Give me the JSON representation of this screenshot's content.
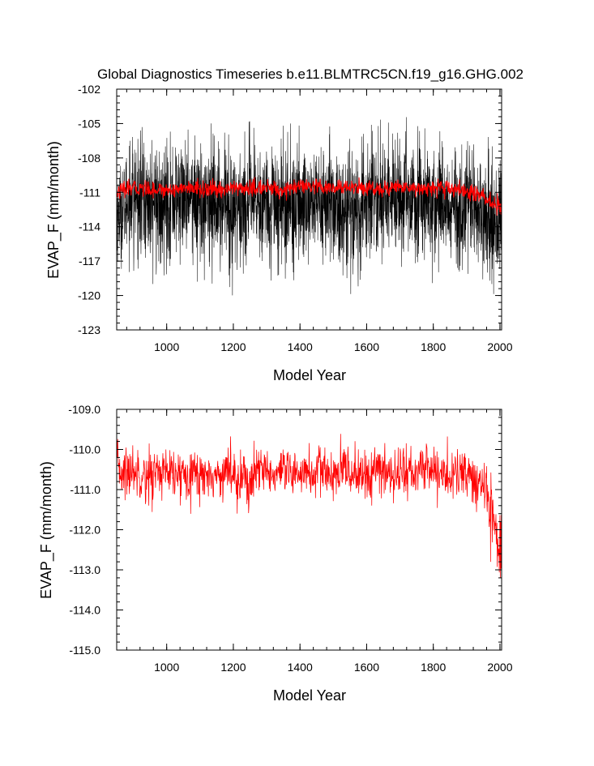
{
  "colors": {
    "background": "#ffffff",
    "axis": "#000000",
    "annual_series": "#000000",
    "smoothed_series": "#ff0000"
  },
  "chart_data": [
    {
      "type": "line",
      "title": "Global Diagnostics Timeseries b.e11.BLMTRC5CN.f19_g16.GHG.002",
      "xlabel": "Model Year",
      "ylabel": "EVAP_F (mm/month)",
      "xlim": [
        850,
        2005
      ],
      "ylim": [
        -123,
        -102
      ],
      "xticks": [
        1000,
        1200,
        1400,
        1600,
        1800,
        2000
      ],
      "xtick_labels": [
        "1000",
        "1200",
        "1400",
        "1600",
        "1800",
        "2000"
      ],
      "yticks": [
        -102,
        -105,
        -108,
        -111,
        -114,
        -117,
        -120,
        -123
      ],
      "ytick_labels": [
        "-102",
        "-105",
        "-108",
        "-111",
        "-114",
        "-117",
        "-120",
        "-123"
      ],
      "grid": false,
      "series": [
        {
          "color": "#000000",
          "style": "dense monthly noise",
          "x": [
            850,
            900,
            950,
            1000,
            1050,
            1100,
            1150,
            1200,
            1250,
            1300,
            1350,
            1400,
            1450,
            1500,
            1550,
            1600,
            1650,
            1700,
            1750,
            1800,
            1850,
            1900,
            1950,
            2000
          ],
          "y_max": [
            -107.8,
            -104.6,
            -104.9,
            -104.5,
            -104.7,
            -105.2,
            -104.8,
            -105.0,
            -104.6,
            -104.9,
            -105.1,
            -104.8,
            -104.7,
            -104.9,
            -105.0,
            -104.8,
            -104.6,
            -103.8,
            -104.9,
            -104.7,
            -105.0,
            -105.2,
            -105.6,
            -106.5
          ],
          "y_min": [
            -118.3,
            -118.0,
            -119.4,
            -118.7,
            -118.5,
            -118.9,
            -119.0,
            -120.4,
            -118.9,
            -118.6,
            -119.1,
            -119.4,
            -118.8,
            -119.2,
            -120.3,
            -118.9,
            -118.8,
            -118.7,
            -119.0,
            -119.0,
            -118.9,
            -119.4,
            -119.5,
            -122.5
          ]
        },
        {
          "color": "#ff0000",
          "x": [
            850,
            900,
            950,
            1000,
            1050,
            1100,
            1150,
            1200,
            1250,
            1300,
            1350,
            1400,
            1450,
            1500,
            1550,
            1600,
            1650,
            1700,
            1750,
            1800,
            1850,
            1900,
            1950,
            2000
          ],
          "y": [
            -111.0,
            -110.6,
            -110.7,
            -110.8,
            -110.6,
            -110.7,
            -110.8,
            -110.6,
            -110.7,
            -110.6,
            -110.8,
            -110.5,
            -110.6,
            -110.7,
            -110.5,
            -110.6,
            -110.7,
            -110.5,
            -110.6,
            -110.6,
            -110.7,
            -110.9,
            -111.3,
            -112.5
          ]
        }
      ]
    },
    {
      "type": "line",
      "xlabel": "Model Year",
      "ylabel": "EVAP_F (mm/month)",
      "xlim": [
        850,
        2005
      ],
      "ylim": [
        -115.0,
        -109.0
      ],
      "xticks": [
        1000,
        1200,
        1400,
        1600,
        1800,
        2000
      ],
      "xtick_labels": [
        "1000",
        "1200",
        "1400",
        "1600",
        "1800",
        "2000"
      ],
      "yticks": [
        -109.0,
        -110.0,
        -111.0,
        -112.0,
        -113.0,
        -114.0,
        -115.0
      ],
      "ytick_labels": [
        "-109.0",
        "-110.0",
        "-111.0",
        "-112.0",
        "-113.0",
        "-114.0",
        "-115.0"
      ],
      "grid": false,
      "series": [
        {
          "color": "#ff0000",
          "x": [
            850,
            875,
            900,
            925,
            950,
            975,
            1000,
            1025,
            1050,
            1075,
            1100,
            1125,
            1150,
            1175,
            1200,
            1225,
            1250,
            1275,
            1300,
            1325,
            1350,
            1375,
            1400,
            1425,
            1450,
            1475,
            1500,
            1525,
            1550,
            1575,
            1600,
            1625,
            1650,
            1675,
            1700,
            1725,
            1750,
            1775,
            1800,
            1825,
            1850,
            1875,
            1900,
            1925,
            1950,
            1975,
            2000
          ],
          "y": [
            -110.4,
            -110.6,
            -110.5,
            -110.6,
            -110.7,
            -110.5,
            -110.6,
            -110.7,
            -110.6,
            -110.5,
            -110.7,
            -110.6,
            -110.7,
            -110.5,
            -110.6,
            -110.7,
            -110.8,
            -110.6,
            -110.5,
            -110.7,
            -110.6,
            -110.7,
            -110.5,
            -110.6,
            -110.6,
            -110.5,
            -110.7,
            -110.6,
            -110.5,
            -110.6,
            -110.7,
            -110.5,
            -110.6,
            -110.6,
            -110.5,
            -110.6,
            -110.6,
            -110.4,
            -110.5,
            -110.6,
            -110.7,
            -110.6,
            -110.7,
            -110.8,
            -110.9,
            -111.4,
            -112.6
          ],
          "y_max_envelope": [
            -109.8,
            -109.3,
            -109.5,
            -109.6,
            -109.4,
            -109.6,
            -109.7,
            -109.5,
            -109.6,
            -109.5,
            -109.6,
            -109.7,
            -109.6,
            -109.5,
            -109.7,
            -109.6,
            -109.6,
            -109.7,
            -109.5,
            -109.6,
            -109.7,
            -109.6,
            -109.6,
            -109.5,
            -109.5,
            -109.6,
            -109.7,
            -109.6,
            -109.5,
            -109.6,
            -109.5,
            -109.5,
            -109.6,
            -109.5,
            -109.5,
            -109.4,
            -109.6,
            -109.5,
            -109.5,
            -109.4,
            -109.8,
            -109.8,
            -109.9,
            -110.0,
            -110.3,
            -110.6,
            -111.0
          ],
          "y_min_envelope": [
            -112.4,
            -112.0,
            -111.8,
            -111.6,
            -112.2,
            -111.9,
            -111.7,
            -111.9,
            -111.8,
            -111.7,
            -111.6,
            -111.7,
            -111.8,
            -111.6,
            -111.8,
            -111.9,
            -112.7,
            -111.9,
            -111.8,
            -111.7,
            -111.8,
            -111.6,
            -111.7,
            -111.8,
            -111.7,
            -111.8,
            -111.8,
            -112.2,
            -111.9,
            -111.8,
            -111.9,
            -111.8,
            -111.7,
            -111.9,
            -111.8,
            -111.8,
            -111.7,
            -111.8,
            -111.8,
            -111.7,
            -112.2,
            -112.1,
            -112.3,
            -112.4,
            -112.8,
            -113.5,
            -114.0
          ]
        }
      ]
    }
  ]
}
